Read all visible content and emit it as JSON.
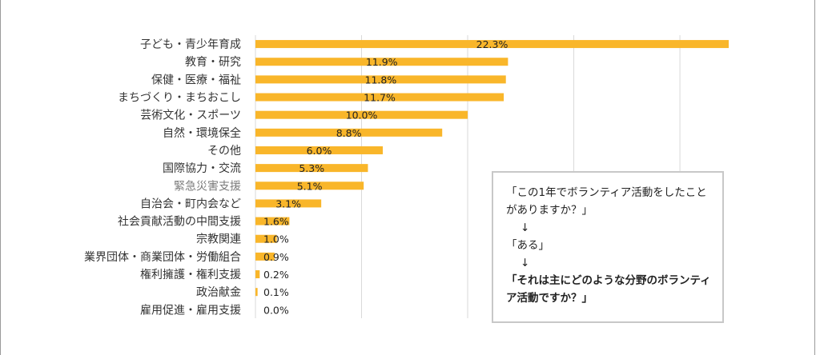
{
  "chart_data": {
    "type": "bar",
    "orientation": "horizontal",
    "categories": [
      "子ども・青少年育成",
      "教育・研究",
      "保健・医療・福祉",
      "まちづくり・まちおこし",
      "芸術文化・スポーツ",
      "自然・環境保全",
      "その他",
      "国際協力・交流",
      "緊急災害支援",
      "自治会・町内会など",
      "社会貢献活動の中間支援",
      "宗教関連",
      "業界団体・商業団体・労働組合",
      "権利擁護・権利支援",
      "政治献金",
      "雇用促進・雇用支援"
    ],
    "values": [
      22.3,
      11.9,
      11.8,
      11.7,
      10.0,
      8.8,
      6.0,
      5.3,
      5.1,
      3.1,
      1.6,
      1.0,
      0.9,
      0.2,
      0.1,
      0.0
    ],
    "value_labels": [
      "22.3%",
      "11.9%",
      "11.8%",
      "11.7%",
      "10.0%",
      "8.8%",
      "6.0%",
      "5.3%",
      "5.1%",
      "3.1%",
      "1.6%",
      "1.0%",
      "0.9%",
      "0.2%",
      "0.1%",
      "0.0%"
    ],
    "xlim": [
      0,
      22.3
    ],
    "gridlines": [
      5,
      10,
      15,
      20
    ],
    "grid": true,
    "bar_color": "#F9B62A",
    "grid_color": "#d9d9d9",
    "muted_category_color": "#7a7a7a"
  },
  "note": {
    "line1": "「この1年でボランティア活動をしたこと",
    "line2": "がありますか？」",
    "arrow1": "↓",
    "line3": "「ある」",
    "arrow2": "↓",
    "bold1": "「それは主にどのような分野のボランティ",
    "bold2": "ア活動ですか？」"
  }
}
